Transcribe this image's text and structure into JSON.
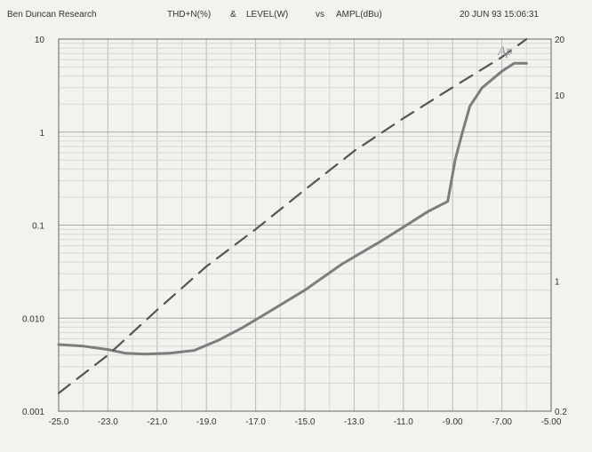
{
  "header": {
    "brand": "Ben Duncan Research",
    "measure1": "THD+N(%)",
    "conjunction": "&",
    "measure2": "LEVEL(W)",
    "vs": "vs",
    "xquantity": "AMPL(dBu)",
    "timestamp": "20 JUN 93 15:06:31"
  },
  "chart_data": {
    "type": "line",
    "x_ticks": [
      "-25.0",
      "-23.0",
      "-21.0",
      "-19.0",
      "-17.0",
      "-15.0",
      "-13.0",
      "-11.0",
      "-9.00",
      "-7.00",
      "-5.00"
    ],
    "y_left_ticks": [
      "10",
      "1",
      "0.1",
      "0.010",
      "0.001"
    ],
    "y_right_ticks": [
      "20",
      "10",
      "1",
      "0.2"
    ],
    "xlim": [
      -25,
      -5
    ],
    "ylim_left": [
      0.001,
      10
    ],
    "ylim_right": [
      0.2,
      20
    ],
    "y_scale": "log",
    "grid": true,
    "annotation": "Ap",
    "series": [
      {
        "axis": "left",
        "style": "solid",
        "color": "#7d7d7d",
        "points": [
          [
            -25.0,
            0.0052
          ],
          [
            -24.0,
            0.005
          ],
          [
            -23.0,
            0.0046
          ],
          [
            -22.3,
            0.0042
          ],
          [
            -21.5,
            0.0041
          ],
          [
            -20.5,
            0.0042
          ],
          [
            -19.5,
            0.0045
          ],
          [
            -18.5,
            0.0058
          ],
          [
            -17.5,
            0.008
          ],
          [
            -16.5,
            0.0115
          ],
          [
            -15.0,
            0.02
          ],
          [
            -13.5,
            0.038
          ],
          [
            -12.0,
            0.065
          ],
          [
            -11.0,
            0.095
          ],
          [
            -10.0,
            0.14
          ],
          [
            -9.2,
            0.18
          ],
          [
            -8.9,
            0.5
          ],
          [
            -8.6,
            1.0
          ],
          [
            -8.3,
            1.9
          ],
          [
            -7.8,
            3.0
          ],
          [
            -7.0,
            4.5
          ],
          [
            -6.5,
            5.5
          ],
          [
            -6.0,
            5.5
          ]
        ]
      },
      {
        "axis": "right",
        "style": "dashed",
        "color": "#555555",
        "points": [
          [
            -25.0,
            0.25
          ],
          [
            -23.0,
            0.4
          ],
          [
            -21.0,
            0.7
          ],
          [
            -19.0,
            1.2
          ],
          [
            -17.0,
            1.9
          ],
          [
            -15.0,
            3.1
          ],
          [
            -13.0,
            5.0
          ],
          [
            -11.0,
            7.5
          ],
          [
            -9.0,
            11.0
          ],
          [
            -7.0,
            16.0
          ],
          [
            -6.0,
            20.0
          ]
        ]
      }
    ]
  }
}
